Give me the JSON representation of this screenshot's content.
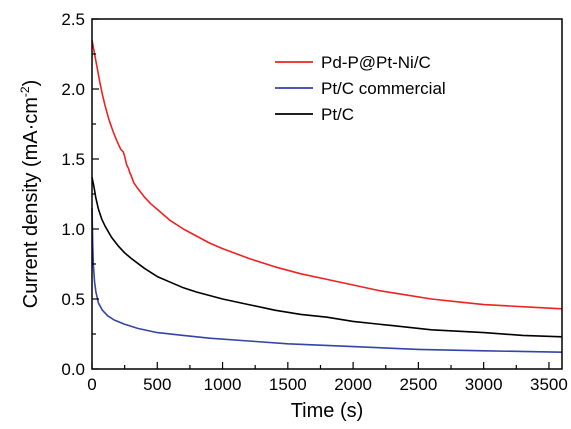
{
  "chart_data": {
    "type": "line",
    "xlabel": "Time (s)",
    "ylabel": {
      "main": "Current density (mA·cm",
      "sup": "-2",
      "tail": ")"
    },
    "xlim": [
      0,
      3600
    ],
    "ylim": [
      0,
      2.5
    ],
    "xticks": [
      "0",
      "500",
      "1000",
      "1500",
      "2000",
      "2500",
      "3000",
      "3500"
    ],
    "yticks": [
      "0.0",
      "0.5",
      "1.0",
      "1.5",
      "2.0",
      "2.5"
    ],
    "grid": false,
    "legend_position": "top-right",
    "series": [
      {
        "name": "Pd-P@Pt-Ni/C",
        "color": "#ee2222",
        "points": [
          [
            0,
            2.35
          ],
          [
            20,
            2.25
          ],
          [
            40,
            2.15
          ],
          [
            60,
            2.05
          ],
          [
            80,
            1.96
          ],
          [
            100,
            1.88
          ],
          [
            130,
            1.78
          ],
          [
            160,
            1.7
          ],
          [
            190,
            1.63
          ],
          [
            220,
            1.57
          ],
          [
            240,
            1.55
          ],
          [
            250,
            1.52
          ],
          [
            265,
            1.46
          ],
          [
            280,
            1.43
          ],
          [
            290,
            1.4
          ],
          [
            300,
            1.38
          ],
          [
            320,
            1.33
          ],
          [
            350,
            1.29
          ],
          [
            400,
            1.23
          ],
          [
            450,
            1.18
          ],
          [
            500,
            1.14
          ],
          [
            600,
            1.06
          ],
          [
            700,
            1.0
          ],
          [
            800,
            0.95
          ],
          [
            900,
            0.9
          ],
          [
            1000,
            0.86
          ],
          [
            1200,
            0.79
          ],
          [
            1400,
            0.73
          ],
          [
            1600,
            0.68
          ],
          [
            1800,
            0.64
          ],
          [
            2000,
            0.6
          ],
          [
            2200,
            0.56
          ],
          [
            2400,
            0.53
          ],
          [
            2600,
            0.5
          ],
          [
            2800,
            0.48
          ],
          [
            3000,
            0.46
          ],
          [
            3200,
            0.45
          ],
          [
            3400,
            0.44
          ],
          [
            3600,
            0.43
          ]
        ]
      },
      {
        "name": "Pt/C commercial",
        "color": "#3344aa",
        "points": [
          [
            0,
            1.15
          ],
          [
            5,
            0.9
          ],
          [
            10,
            0.75
          ],
          [
            20,
            0.62
          ],
          [
            30,
            0.55
          ],
          [
            50,
            0.47
          ],
          [
            80,
            0.42
          ],
          [
            120,
            0.38
          ],
          [
            170,
            0.35
          ],
          [
            250,
            0.32
          ],
          [
            350,
            0.29
          ],
          [
            500,
            0.26
          ],
          [
            700,
            0.24
          ],
          [
            900,
            0.22
          ],
          [
            1200,
            0.2
          ],
          [
            1500,
            0.18
          ],
          [
            2000,
            0.16
          ],
          [
            2500,
            0.14
          ],
          [
            3000,
            0.13
          ],
          [
            3600,
            0.12
          ]
        ]
      },
      {
        "name": "Pt/C",
        "color": "#000000",
        "points": [
          [
            0,
            1.37
          ],
          [
            15,
            1.3
          ],
          [
            30,
            1.22
          ],
          [
            50,
            1.14
          ],
          [
            75,
            1.07
          ],
          [
            100,
            1.02
          ],
          [
            150,
            0.94
          ],
          [
            200,
            0.88
          ],
          [
            250,
            0.83
          ],
          [
            300,
            0.79
          ],
          [
            400,
            0.72
          ],
          [
            500,
            0.66
          ],
          [
            600,
            0.62
          ],
          [
            700,
            0.58
          ],
          [
            800,
            0.55
          ],
          [
            1000,
            0.5
          ],
          [
            1200,
            0.46
          ],
          [
            1400,
            0.42
          ],
          [
            1600,
            0.39
          ],
          [
            1800,
            0.37
          ],
          [
            2000,
            0.34
          ],
          [
            2300,
            0.31
          ],
          [
            2600,
            0.28
          ],
          [
            3000,
            0.26
          ],
          [
            3300,
            0.24
          ],
          [
            3600,
            0.23
          ]
        ]
      }
    ]
  }
}
